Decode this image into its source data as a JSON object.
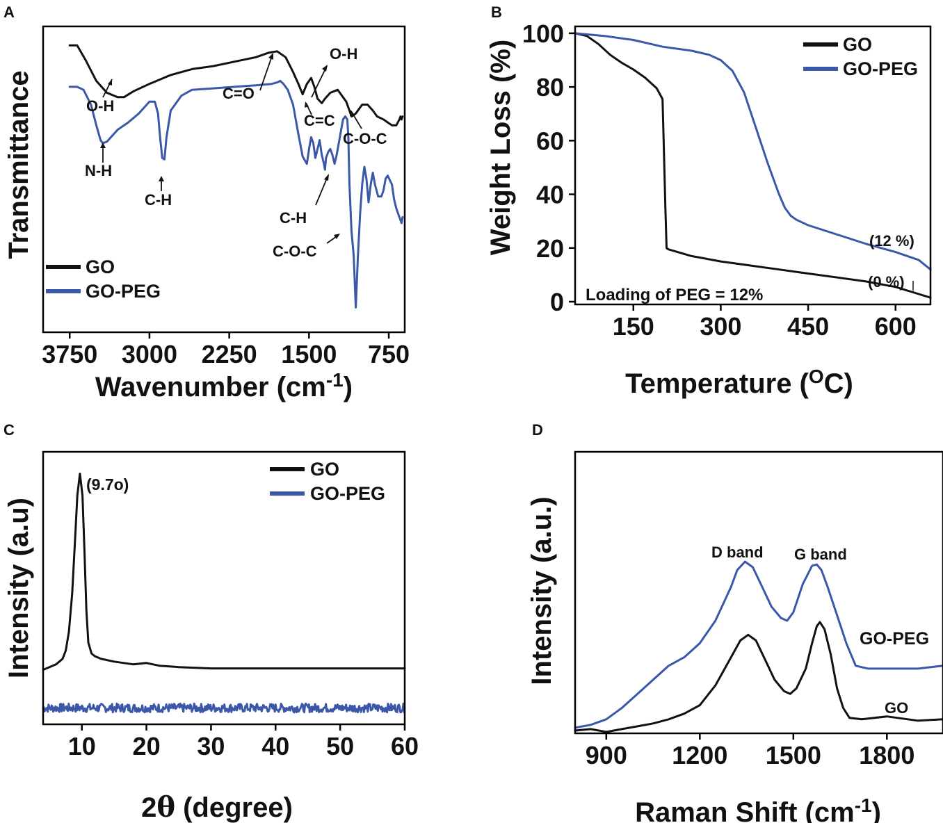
{
  "colors": {
    "go": "#111111",
    "go_peg": "#3a57a8",
    "text": "#111111"
  },
  "chart_data": [
    {
      "panel": "A",
      "type": "line",
      "title": "",
      "xlabel_main": "Wavenumber (cm",
      "xlabel_sup": "-1",
      "xlabel_end": ")",
      "ylabel": "Transmittance",
      "xlim": [
        4000,
        600
      ],
      "ylim": [
        0,
        100
      ],
      "x_ticks": [
        3750,
        3000,
        2250,
        1500,
        750
      ],
      "x_tick_labels": [
        "3750",
        "3000",
        "2250",
        "1500",
        "750"
      ],
      "y_ticks": [],
      "grid": false,
      "legend": {
        "position": "bottom-left",
        "entries": [
          "GO",
          "GO-PEG"
        ]
      },
      "series": [
        {
          "name": "GO",
          "x": [
            3750,
            3680,
            3600,
            3500,
            3400,
            3300,
            3240,
            3150,
            3000,
            2800,
            2600,
            2400,
            2200,
            2000,
            1880,
            1800,
            1720,
            1650,
            1600,
            1560,
            1520,
            1480,
            1450,
            1420,
            1380,
            1350,
            1300,
            1230,
            1150,
            1100,
            1060,
            1000,
            950,
            900,
            860,
            800,
            760,
            720,
            680,
            650,
            640,
            630,
            620
          ],
          "y": [
            95,
            95,
            90,
            83,
            79,
            77.5,
            77.5,
            79.5,
            82,
            85,
            87,
            88,
            89.5,
            91,
            92.5,
            93,
            91,
            86,
            82,
            78.5,
            82,
            84,
            81,
            77,
            75.5,
            77,
            79,
            80,
            76,
            71,
            72,
            75,
            75,
            73,
            71,
            70,
            69,
            68,
            68,
            70,
            71,
            70,
            71
          ]
        },
        {
          "name": "GO-PEG",
          "x": [
            3750,
            3680,
            3620,
            3550,
            3500,
            3460,
            3440,
            3400,
            3350,
            3300,
            3200,
            3100,
            3000,
            2950,
            2920,
            2900,
            2880,
            2860,
            2840,
            2800,
            2700,
            2600,
            2400,
            2200,
            2000,
            1850,
            1800,
            1770,
            1740,
            1700,
            1650,
            1600,
            1560,
            1520,
            1500,
            1480,
            1460,
            1440,
            1420,
            1400,
            1380,
            1360,
            1350,
            1340,
            1320,
            1300,
            1280,
            1260,
            1240,
            1220,
            1200,
            1180,
            1160,
            1140,
            1130,
            1120,
            1110,
            1100,
            1090,
            1080,
            1060,
            1040,
            1020,
            1000,
            980,
            960,
            940,
            920,
            900,
            880,
            850,
            820,
            800,
            780,
            760,
            720,
            700,
            680,
            660,
            640,
            630,
            620
          ],
          "y": [
            81,
            81,
            80,
            75,
            68,
            63,
            62,
            62.5,
            64.5,
            66.5,
            69,
            72,
            76,
            76,
            72,
            64,
            57,
            56.5,
            64,
            73,
            78,
            80,
            80.5,
            81,
            81.5,
            82,
            82.5,
            83,
            82,
            80,
            75,
            65,
            57.5,
            55,
            60,
            64,
            62,
            57,
            60,
            63,
            58,
            55,
            53,
            57,
            59,
            60,
            58,
            55,
            58,
            62,
            66,
            70,
            71,
            70,
            64,
            48,
            40,
            32,
            28,
            24,
            6.5,
            24,
            38,
            48,
            54,
            50,
            42,
            48,
            52,
            48,
            44,
            44,
            46,
            50,
            51,
            48,
            43,
            40,
            38,
            36,
            35,
            37
          ]
        }
      ],
      "annotations": [
        "O-H",
        "N-H",
        "C-H",
        "C=O",
        "O-H",
        "C=C",
        "C-O-C",
        "C-H",
        "C-O-C"
      ]
    },
    {
      "panel": "B",
      "type": "line",
      "title": "",
      "xlabel_main": "Temperature (",
      "xlabel_sup": "O",
      "xlabel_end": "C)",
      "ylabel": "Weight Loss (%)",
      "xlim": [
        50,
        660
      ],
      "ylim": [
        0,
        101
      ],
      "x_ticks": [
        150,
        300,
        450,
        600
      ],
      "x_tick_labels": [
        "150",
        "300",
        "450",
        "600"
      ],
      "y_ticks": [
        0,
        20,
        40,
        60,
        80,
        100
      ],
      "y_tick_labels": [
        "0",
        "20",
        "40",
        "60",
        "80",
        "100"
      ],
      "grid": false,
      "legend": {
        "position": "top-right",
        "entries": [
          "GO",
          "GO-PEG"
        ]
      },
      "series": [
        {
          "name": "GO",
          "x": [
            50,
            70,
            90,
            110,
            130,
            150,
            170,
            190,
            200,
            202,
            205,
            207,
            210,
            250,
            300,
            350,
            400,
            450,
            500,
            550,
            600,
            630,
            660
          ],
          "y": [
            100,
            99,
            96,
            92,
            89,
            86.5,
            83.5,
            79.5,
            75.5,
            60,
            35,
            20,
            19.5,
            17,
            15,
            13.5,
            12,
            10.5,
            9,
            7.5,
            5.5,
            3.5,
            1.5
          ]
        },
        {
          "name": "GO-PEG",
          "x": [
            50,
            100,
            150,
            200,
            250,
            280,
            300,
            320,
            340,
            360,
            380,
            400,
            410,
            420,
            430,
            450,
            500,
            550,
            600,
            640,
            660
          ],
          "y": [
            100,
            99,
            97.5,
            95,
            93.5,
            92,
            90,
            86,
            78,
            65,
            52,
            40,
            35,
            32,
            30.5,
            28.5,
            25,
            21.5,
            18.5,
            15.5,
            12
          ]
        }
      ],
      "annotations": [
        "(12 %)",
        "(0 %)",
        "Loading of PEG = 12%"
      ]
    },
    {
      "panel": "C",
      "type": "line",
      "title": "",
      "xlabel_prefix": "2",
      "xlabel_theta": "θ",
      "xlabel_rest": " (degree)",
      "ylabel": "Intensity (a.u)",
      "xlim": [
        4,
        60
      ],
      "ylim": [
        0,
        100
      ],
      "x_ticks": [
        10,
        20,
        30,
        40,
        50,
        60
      ],
      "x_tick_labels": [
        "10",
        "20",
        "30",
        "40",
        "50",
        "60"
      ],
      "y_ticks": [],
      "grid": false,
      "legend": {
        "position": "top-right",
        "entries": [
          "GO",
          "GO-PEG"
        ]
      },
      "series": [
        {
          "name": "GO",
          "x": [
            4,
            6,
            7,
            7.5,
            8,
            8.5,
            9,
            9.3,
            9.7,
            10.1,
            10.4,
            10.7,
            11,
            11.5,
            12,
            13,
            15,
            18,
            20,
            22,
            25,
            30,
            40,
            50,
            58,
            60
          ],
          "y": [
            20,
            22,
            24,
            27,
            34,
            48,
            70,
            84,
            92,
            84,
            64,
            42,
            30,
            26,
            25,
            24,
            23,
            22,
            22.5,
            21.5,
            21,
            20.5,
            20.5,
            20.5,
            20.5,
            20.5
          ]
        },
        {
          "name": "GO-PEG",
          "x": [
            4,
            60
          ],
          "y": [
            6,
            6
          ]
        }
      ],
      "annotations": [
        "(9.7o)"
      ]
    },
    {
      "panel": "D",
      "type": "line",
      "title": "",
      "xlabel_main": "Raman Shift  (cm",
      "xlabel_sup": "-1",
      "xlabel_end": ")",
      "ylabel": "Intensity (a.u.)",
      "xlim": [
        800,
        1980
      ],
      "ylim": [
        0,
        100
      ],
      "x_ticks": [
        900,
        1200,
        1500,
        1800
      ],
      "x_tick_labels": [
        "900",
        "1200",
        "1500",
        "1800"
      ],
      "y_ticks": [],
      "grid": false,
      "legend": {
        "position": "none",
        "entries": []
      },
      "series": [
        {
          "name": "GO",
          "x": [
            800,
            850,
            900,
            950,
            1000,
            1050,
            1100,
            1150,
            1200,
            1250,
            1300,
            1330,
            1355,
            1380,
            1410,
            1440,
            1470,
            1490,
            1510,
            1540,
            1560,
            1575,
            1585,
            1600,
            1620,
            1640,
            1660,
            1680,
            1720,
            1800,
            1900,
            1980
          ],
          "y": [
            1,
            1.5,
            0.5,
            1.5,
            2.5,
            3.5,
            5,
            7,
            10,
            17,
            27,
            33,
            35,
            33,
            26,
            19,
            15,
            14,
            16,
            23,
            32,
            38,
            39.5,
            37,
            28,
            16,
            9,
            5.5,
            5,
            6,
            4.5,
            5
          ]
        },
        {
          "name": "GO-PEG",
          "x": [
            800,
            850,
            900,
            950,
            1000,
            1050,
            1080,
            1100,
            1150,
            1200,
            1250,
            1300,
            1320,
            1345,
            1370,
            1400,
            1430,
            1460,
            1480,
            1500,
            1530,
            1560,
            1575,
            1590,
            1610,
            1640,
            1670,
            1700,
            1740,
            1800,
            1900,
            1980
          ],
          "y": [
            2,
            3,
            5,
            9,
            14,
            19,
            22,
            24,
            27,
            32,
            40,
            52,
            58,
            61,
            59,
            52,
            45,
            41,
            40,
            43,
            53,
            59.5,
            60,
            58,
            52,
            42,
            32,
            24,
            23,
            23,
            23,
            24
          ]
        }
      ],
      "annotations": [
        "D band",
        "G band",
        "GO-PEG",
        "GO"
      ]
    }
  ]
}
